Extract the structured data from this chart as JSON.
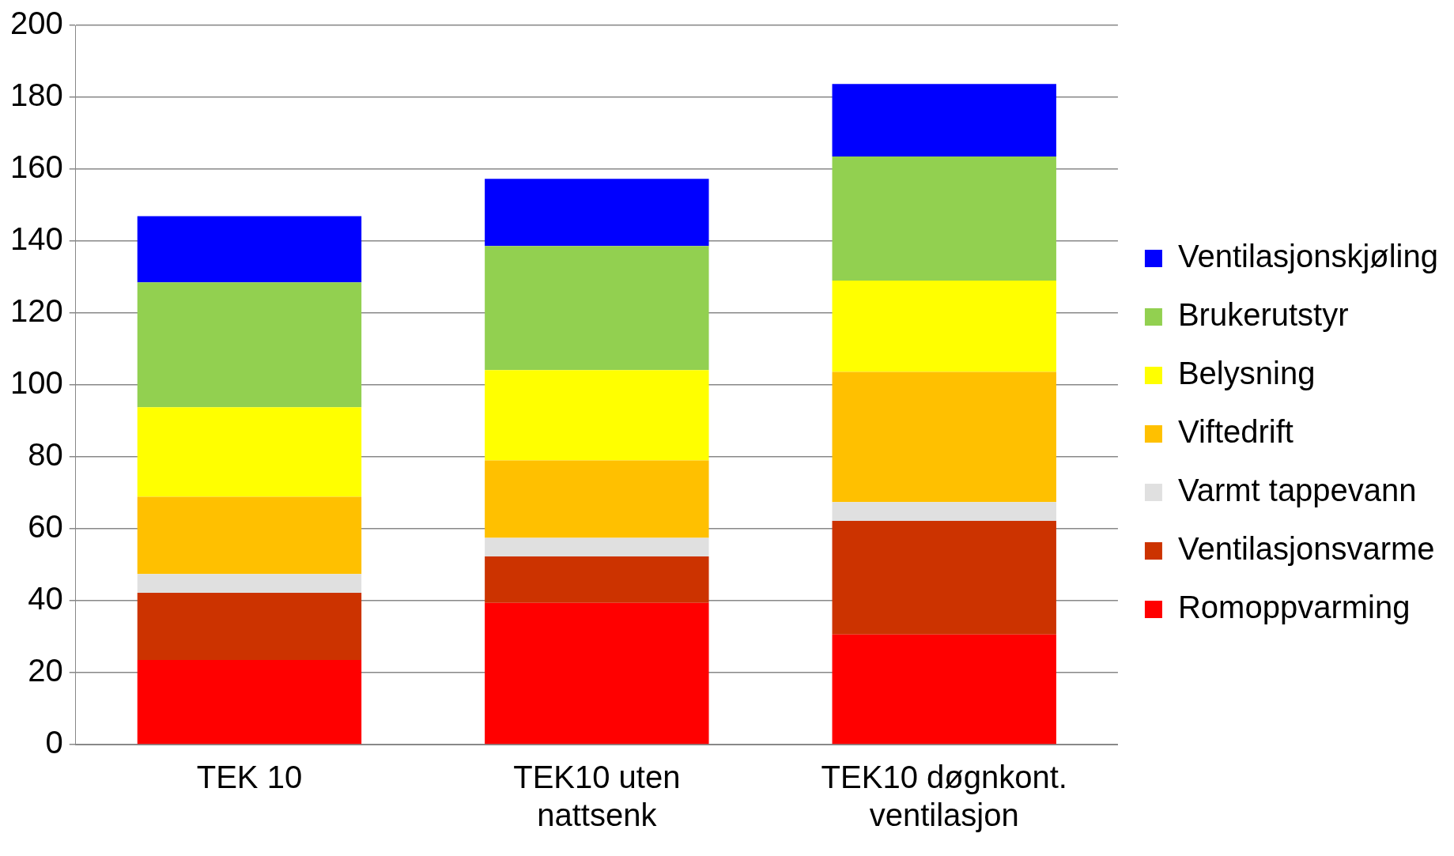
{
  "chart_data": {
    "type": "bar",
    "stacked": true,
    "categories": [
      "TEK 10",
      "TEK10 uten nattsenk",
      "TEK10 døgnkont. ventilasjon"
    ],
    "series": [
      {
        "name": "Romoppvarming",
        "color": "#ff0000",
        "values": [
          23.5,
          39.4,
          30.6
        ]
      },
      {
        "name": "Ventilasjonsvarme",
        "color": "#cc3300",
        "values": [
          18.7,
          12.9,
          31.6
        ]
      },
      {
        "name": "Varmt tappevann",
        "color": "#e0e0e0",
        "values": [
          5.2,
          5.2,
          5.2
        ]
      },
      {
        "name": "Viftedrift",
        "color": "#ffc000",
        "values": [
          21.5,
          21.5,
          36.2
        ]
      },
      {
        "name": "Belysning",
        "color": "#ffff00",
        "values": [
          24.9,
          25.1,
          25.4
        ]
      },
      {
        "name": "Brukerutstyr",
        "color": "#92d050",
        "values": [
          34.7,
          34.5,
          34.5
        ]
      },
      {
        "name": "Ventilasjonskjøling",
        "color": "#0000ff",
        "values": [
          18.4,
          18.7,
          20.2
        ]
      }
    ],
    "ylim": [
      0,
      200
    ],
    "yticks": [
      0,
      20,
      40,
      60,
      80,
      100,
      120,
      140,
      160,
      180,
      200
    ],
    "grid": "y",
    "legend": "right"
  }
}
